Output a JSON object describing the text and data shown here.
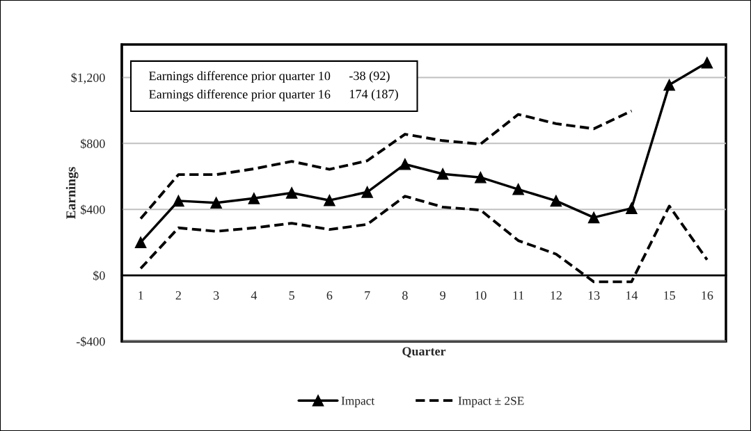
{
  "chart_data": {
    "type": "line",
    "xlabel": "Quarter",
    "ylabel": "Earnings",
    "categories": [
      "1",
      "2",
      "3",
      "4",
      "5",
      "6",
      "7",
      "8",
      "9",
      "10",
      "11",
      "12",
      "13",
      "14",
      "15",
      "16"
    ],
    "series": [
      {
        "name": "Impact",
        "color": "#000000",
        "marker": "triangle",
        "line_style": "solid",
        "values": [
          200,
          452,
          440,
          467,
          500,
          455,
          505,
          674,
          615,
          594,
          522,
          452,
          351,
          407,
          1155,
          1290
        ]
      },
      {
        "name": "Impact ± 2SE",
        "color": "#000000",
        "marker": "none",
        "line_style": "dashed",
        "values": [
          344,
          611,
          611,
          646,
          691,
          643,
          695,
          856,
          817,
          796,
          976,
          920,
          889,
          997,
          null,
          null
        ]
      },
      {
        "color": "#000000",
        "marker": "none",
        "line_style": "dashed",
        "values": [
          42,
          288,
          267,
          288,
          316,
          278,
          309,
          480,
          414,
          396,
          211,
          129,
          -39,
          -39,
          420,
          95
        ]
      }
    ],
    "ylim": [
      -400,
      1400
    ],
    "yticks": [
      {
        "value": -400,
        "label": "-$400"
      },
      {
        "value": 0,
        "label": "$0"
      },
      {
        "value": 400,
        "label": "$400"
      },
      {
        "value": 800,
        "label": "$800"
      },
      {
        "value": 1200,
        "label": "$1,200"
      }
    ],
    "grid": "y",
    "legend": "bottom",
    "annotations": [
      "Earnings difference prior quarter 10",
      "-38 (92)",
      "Earnings difference prior quarter 16",
      "174 (187)"
    ]
  }
}
